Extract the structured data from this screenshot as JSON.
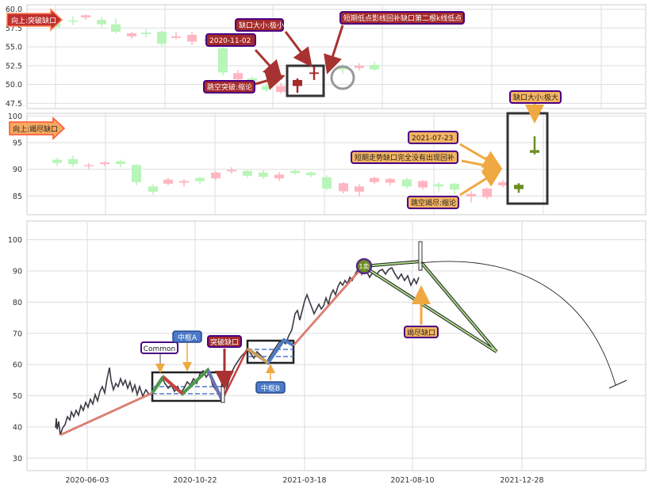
{
  "chart_data": [
    {
      "type": "candlestick",
      "y_ticks": [
        60.0,
        57.5,
        55.0,
        52.5,
        50.0,
        47.5
      ],
      "ylim": [
        46.8,
        60.6
      ],
      "grid": true,
      "annotations": {
        "direction_label": "向上:突破缺口",
        "date_label": "2020-11-02",
        "gap_size_label": "缺口大小:极小",
        "low_point_label": "短期低点影线回补缺口第二根k线低点",
        "reason_label": "跳空突破:缩论"
      },
      "colors": {
        "up": "#ffb6c1",
        "down": "#b8f5b8",
        "highlight_up": "#a52a2a"
      }
    },
    {
      "type": "candlestick",
      "y_ticks": [
        100,
        95,
        90,
        85
      ],
      "ylim": [
        81.5,
        100.5
      ],
      "grid": true,
      "annotations": {
        "direction_label": "向上:竭尽缺口",
        "date_label": "2021-07-23",
        "gap_size_label": "缺口大小:极大",
        "low_point_label": "短期走势缺口完全没有出现回补",
        "reason_label": "跳空竭尽:缩论"
      },
      "colors": {
        "up": "#ffb6c1",
        "down": "#b8f5b8",
        "highlight_up": "#6b8e23"
      }
    },
    {
      "type": "line",
      "x_tick_labels": [
        "2020-06-03",
        "2020-10-22",
        "2021-03-18",
        "2021-08-10",
        "2021-12-28"
      ],
      "y_ticks": [
        100,
        90,
        80,
        70,
        60,
        50,
        40,
        30
      ],
      "ylim": [
        26,
        106
      ],
      "grid": true,
      "annotations": {
        "common_label": "Common",
        "zs_a_label": "中枢A",
        "zs_b_label": "中枢B",
        "breakout_label": "突破缺口",
        "exhaustion_label": "竭尽缺口",
        "circle_label": "1卖"
      },
      "colors": {
        "line": "#3a3a44",
        "bi_red": "#c84040",
        "bi_green": "#4c9a4c",
        "bi_blue": "#4a7ac8"
      }
    }
  ]
}
